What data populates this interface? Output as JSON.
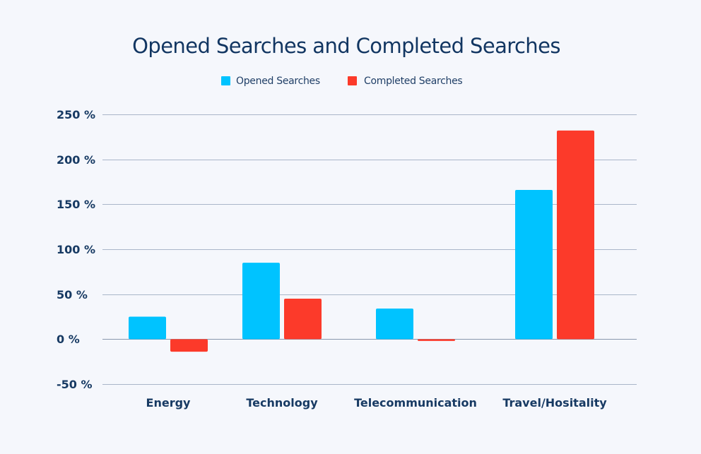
{
  "chart_data": {
    "type": "bar",
    "title": "Opened Searches and Completed Searches",
    "categories": [
      "Energy",
      "Technology",
      "Telecommunication",
      "Travel/Hositality"
    ],
    "series": [
      {
        "name": "Opened Searches",
        "values": [
          25,
          85,
          34,
          166
        ],
        "color": "#00c3ff"
      },
      {
        "name": "Completed Searches",
        "values": [
          -14,
          45,
          -2,
          232
        ],
        "color": "#fc3a2a"
      }
    ],
    "ylim": [
      -50,
      250
    ],
    "yticks": [
      250,
      200,
      150,
      100,
      50,
      0,
      -50
    ],
    "ytick_labels": [
      "250 %",
      "200 %",
      "150 %",
      "100 %",
      "50 %",
      "0 %",
      "-50 %"
    ],
    "xlabel": "",
    "ylabel": "",
    "grid": true,
    "legend_position": "top-center"
  }
}
